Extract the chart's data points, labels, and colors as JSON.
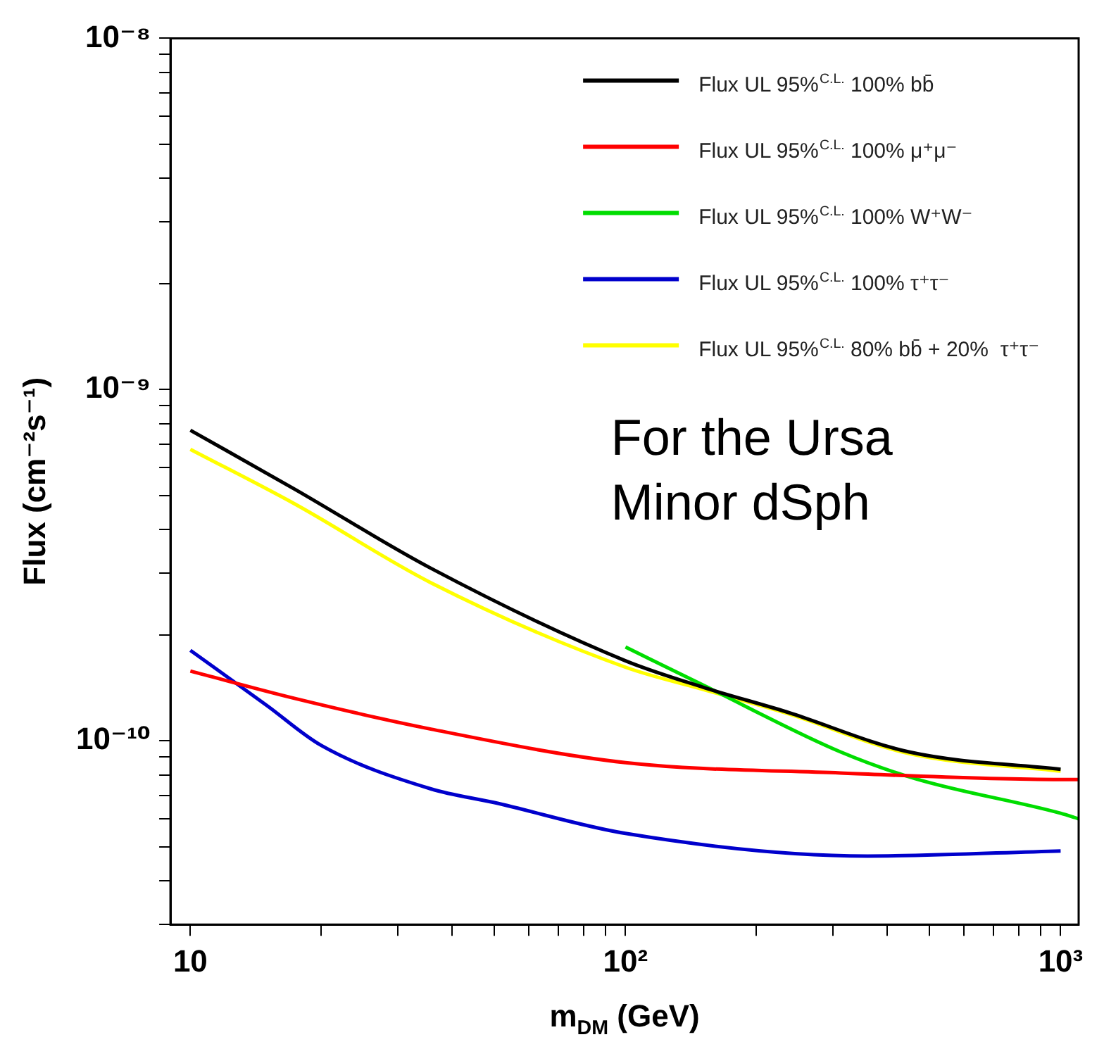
{
  "chart_data": {
    "type": "line",
    "xlabel": "m$_{DM}$ (GeV)",
    "ylabel": "Flux (cm⁻²s⁻¹)",
    "log": "xy",
    "grid": false,
    "legend": "top right",
    "marker": "none",
    "line_style": "solid",
    "xlim": [
      9,
      1100
    ],
    "ylim": [
      3e-11,
      1e-08
    ],
    "xticks": [
      {
        "value": 10,
        "label": "10"
      },
      {
        "value": 20,
        "label": null
      },
      {
        "value": 30,
        "label": null
      },
      {
        "value": 40,
        "label": null
      },
      {
        "value": 50,
        "label": null
      },
      {
        "value": 60,
        "label": null
      },
      {
        "value": 70,
        "label": null
      },
      {
        "value": 80,
        "label": null
      },
      {
        "value": 90,
        "label": null
      },
      {
        "value": 100,
        "label": "10²"
      },
      {
        "value": 200,
        "label": null
      },
      {
        "value": 300,
        "label": null
      },
      {
        "value": 400,
        "label": null
      },
      {
        "value": 500,
        "label": null
      },
      {
        "value": 600,
        "label": null
      },
      {
        "value": 700,
        "label": null
      },
      {
        "value": 800,
        "label": null
      },
      {
        "value": 900,
        "label": null
      },
      {
        "value": 1000,
        "label": "10³"
      }
    ],
    "yticks": [
      {
        "value": 3e-11,
        "label": null
      },
      {
        "value": 4e-11,
        "label": null
      },
      {
        "value": 5e-11,
        "label": null
      },
      {
        "value": 6e-11,
        "label": null
      },
      {
        "value": 7e-11,
        "label": null
      },
      {
        "value": 8e-11,
        "label": null
      },
      {
        "value": 9e-11,
        "label": null
      },
      {
        "value": 1e-10,
        "label": "10⁻¹⁰"
      },
      {
        "value": 2e-10,
        "label": null
      },
      {
        "value": 3e-10,
        "label": null
      },
      {
        "value": 4e-10,
        "label": null
      },
      {
        "value": 5e-10,
        "label": null
      },
      {
        "value": 6e-10,
        "label": null
      },
      {
        "value": 7e-10,
        "label": null
      },
      {
        "value": 8e-10,
        "label": null
      },
      {
        "value": 9e-10,
        "label": null
      },
      {
        "value": 1e-09,
        "label": "10⁻⁹"
      },
      {
        "value": 2e-09,
        "label": null
      },
      {
        "value": 3e-09,
        "label": null
      },
      {
        "value": 4e-09,
        "label": null
      },
      {
        "value": 5e-09,
        "label": null
      },
      {
        "value": 6e-09,
        "label": null
      },
      {
        "value": 7e-09,
        "label": null
      },
      {
        "value": 8e-09,
        "label": null
      },
      {
        "value": 9e-09,
        "label": null
      },
      {
        "value": 1e-08,
        "label": "10⁻⁸"
      }
    ],
    "annotations": [
      "For the Ursa Minor dSph"
    ],
    "series": [
      {
        "name": "Flux UL 95%$^{C.L.}$ 100% bb̄",
        "color": "#000000",
        "x": [
          10,
          17.4,
          35.7,
          100,
          151,
          234,
          448,
          1000
        ],
        "values": [
          7.66e-10,
          5.2e-10,
          3.1e-10,
          1.69e-10,
          1.42e-10,
          1.21e-10,
          9.3e-11,
          8.3e-11
        ]
      },
      {
        "name": "Flux UL 95%$^{C.L.}$ 100% μ⁺μ⁻",
        "color": "#ff0000",
        "x": [
          10,
          17.4,
          35.7,
          100,
          312,
          1000,
          1100
        ],
        "values": [
          1.58e-10,
          1.32e-10,
          1.08e-10,
          8.67e-11,
          8.1e-11,
          7.76e-11,
          7.76e-11
        ]
      },
      {
        "name": "Flux UL 95%$^{C.L.}$ 100% W⁺W⁻",
        "color": "#00dd00",
        "x": [
          100,
          151,
          312,
          464,
          1000,
          1100
        ],
        "values": [
          1.85e-10,
          1.44e-10,
          9.3e-11,
          7.8e-11,
          6.22e-11,
          6e-11
        ]
      },
      {
        "name": "Flux UL 95%$^{C.L.}$ 100% τ⁺τ⁻",
        "color": "#0000cc",
        "x": [
          10,
          15,
          20,
          35.7,
          50,
          100,
          360,
          1000
        ],
        "values": [
          1.81e-10,
          1.26e-10,
          9.7e-11,
          7.3e-11,
          6.67e-11,
          5.45e-11,
          4.7e-11,
          4.86e-11
        ]
      },
      {
        "name": "Flux UL 95%$^{C.L.}$ 80% bb̄ + 20%  τ⁺τ⁻",
        "color": "#ffff00",
        "x": [
          10,
          17.4,
          35.7,
          100,
          151,
          234,
          448,
          1000
        ],
        "values": [
          6.76e-10,
          4.72e-10,
          2.82e-10,
          1.62e-10,
          1.4e-10,
          1.2e-10,
          9.2e-11,
          8.2e-11
        ]
      }
    ]
  }
}
